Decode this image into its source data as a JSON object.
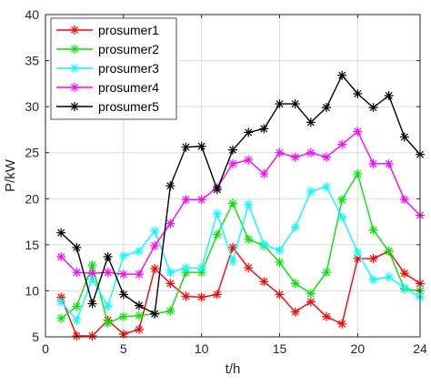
{
  "chart_data": {
    "type": "line",
    "title": "",
    "xlabel": "t/h",
    "ylabel": "P/kW",
    "xlim": [
      0,
      24
    ],
    "ylim": [
      5,
      40
    ],
    "xticks": [
      0,
      5,
      10,
      15,
      20,
      24
    ],
    "yticks": [
      5,
      10,
      15,
      20,
      25,
      30,
      35,
      40
    ],
    "grid": true,
    "legend_position": "top-left",
    "marker": "asterisk",
    "x": [
      1,
      2,
      3,
      4,
      5,
      6,
      7,
      8,
      9,
      10,
      11,
      12,
      13,
      14,
      15,
      16,
      17,
      18,
      19,
      20,
      21,
      22,
      23,
      24
    ],
    "series": [
      {
        "name": "prosumer1",
        "color": "#ff0000",
        "values": [
          9.3,
          5.1,
          5.1,
          6.8,
          5.3,
          5.8,
          12.4,
          10.8,
          9.4,
          9.3,
          9.6,
          14.7,
          12.5,
          11.0,
          9.6,
          7.7,
          8.8,
          7.2,
          6.4,
          13.5,
          13.5,
          14.3,
          11.9,
          10.8
        ]
      },
      {
        "name": "prosumer2",
        "color": "#00e600",
        "values": [
          7.0,
          8.3,
          12.8,
          6.5,
          7.2,
          7.3,
          7.5,
          7.8,
          12.0,
          12.0,
          16.1,
          19.5,
          15.6,
          14.9,
          13.1,
          10.8,
          9.7,
          12.0,
          19.9,
          22.7,
          16.6,
          14.3,
          10.2,
          10.0
        ]
      },
      {
        "name": "prosumer3",
        "color": "#00ffff",
        "values": [
          8.8,
          6.8,
          11.3,
          8.3,
          13.8,
          14.3,
          16.5,
          12.0,
          12.5,
          12.5,
          18.4,
          13.2,
          19.4,
          15.0,
          14.4,
          16.9,
          20.8,
          21.3,
          18.0,
          14.2,
          11.2,
          11.5,
          10.3,
          9.3
        ]
      },
      {
        "name": "prosumer4",
        "color": "#ff00ff",
        "values": [
          13.7,
          12.0,
          11.9,
          12.0,
          11.8,
          11.8,
          14.9,
          17.3,
          19.9,
          19.9,
          21.2,
          23.8,
          24.2,
          22.7,
          25.0,
          24.5,
          25.0,
          24.5,
          25.9,
          27.3,
          23.8,
          23.8,
          19.9,
          18.2
        ]
      },
      {
        "name": "prosumer5",
        "color": "#000000",
        "values": [
          16.3,
          14.7,
          8.6,
          13.7,
          9.6,
          8.4,
          7.5,
          21.4,
          25.6,
          25.7,
          21.0,
          25.3,
          27.2,
          27.6,
          30.3,
          30.3,
          28.3,
          29.9,
          33.4,
          31.4,
          29.9,
          31.2,
          26.7,
          24.8
        ]
      }
    ]
  }
}
